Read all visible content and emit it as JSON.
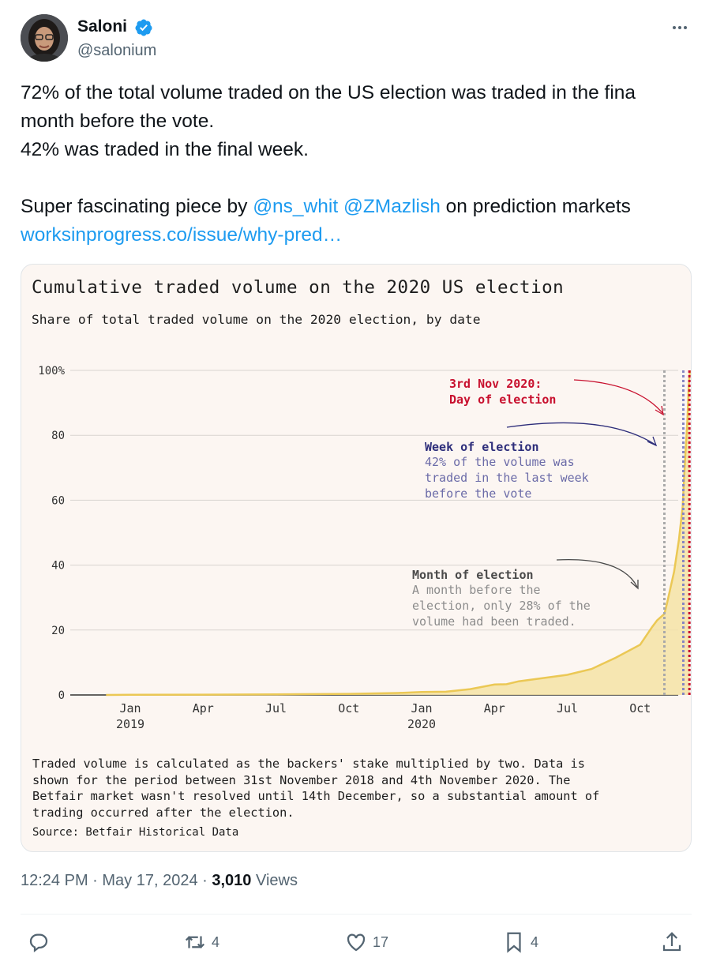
{
  "author": {
    "name": "Saloni",
    "handle": "@salonium",
    "avatar_icon": "profile-photo"
  },
  "tweet": {
    "line1": "72% of the total volume traded on the US election was traded in the fina",
    "line2": "month before the vote.",
    "line3": "42% was traded in the final week.",
    "line4_prefix": "Super fascinating piece by ",
    "mention1": "@ns_whit",
    "mention2": "@ZMazlish",
    "line4_suffix": " on prediction markets",
    "link": "worksinprogress.co/issue/why-pred…"
  },
  "chart_data": {
    "type": "area",
    "title": "Cumulative traded volume on the 2020 US election",
    "subtitle": "Share of total traded volume on the 2020 election, by date",
    "y_ticks": [
      "100%",
      "80",
      "60",
      "40",
      "20",
      "0"
    ],
    "ylim": [
      0,
      100
    ],
    "x_ticks": [
      {
        "label": "Jan",
        "year": "2019",
        "month": 0
      },
      {
        "label": "Apr",
        "year": "",
        "month": 3
      },
      {
        "label": "Jul",
        "year": "",
        "month": 6
      },
      {
        "label": "Oct",
        "year": "",
        "month": 9
      },
      {
        "label": "Jan",
        "year": "2020",
        "month": 12
      },
      {
        "label": "Apr",
        "year": "",
        "month": 15
      },
      {
        "label": "Jul",
        "year": "",
        "month": 18
      },
      {
        "label": "Oct",
        "year": "",
        "month": 21
      }
    ],
    "x_units": "months since Jan 2019",
    "series": [
      {
        "values": [
          [
            -1,
            0
          ],
          [
            0,
            0.05
          ],
          [
            3,
            0.1
          ],
          [
            6,
            0.2
          ],
          [
            9,
            0.35
          ],
          [
            11,
            0.6
          ],
          [
            12,
            0.9
          ],
          [
            13,
            1.0
          ],
          [
            14,
            1.8
          ],
          [
            15,
            3.2
          ],
          [
            15.5,
            3.3
          ],
          [
            16,
            4.2
          ],
          [
            17,
            5.2
          ],
          [
            18,
            6.2
          ],
          [
            19,
            8.0
          ],
          [
            20,
            11.5
          ],
          [
            21,
            15.5
          ],
          [
            21.5,
            21.0
          ],
          [
            21.7,
            23.0
          ],
          [
            22.0,
            25.0
          ],
          [
            22.1,
            28.0
          ],
          [
            22.4,
            38.0
          ],
          [
            22.6,
            48.0
          ],
          [
            22.75,
            58.0
          ],
          [
            22.85,
            72.0
          ],
          [
            22.95,
            85.0
          ],
          [
            23.0,
            95.0
          ],
          [
            23.05,
            100
          ]
        ]
      }
    ],
    "markers": [
      {
        "name": "month",
        "x": 22.0,
        "color": "#a9a9a9"
      },
      {
        "name": "week",
        "x": 22.78,
        "color": "#8585c2"
      },
      {
        "name": "election",
        "x": 23.03,
        "color": "#c8102e"
      },
      {
        "name": "end",
        "x": 23.38,
        "color": "#e8b92b"
      }
    ],
    "annotations": {
      "election_title": "3rd Nov 2020:",
      "election_sub": "Day of election",
      "week_title": "Week of election",
      "week_l1": "42% of the volume was",
      "week_l2": "traded in the last week",
      "week_l3": "before the vote",
      "month_title": "Month of election",
      "month_l1": "A month before the",
      "month_l2": "election, only 28% of the",
      "month_l3": "volume had been traded."
    },
    "colors": {
      "area": "#f5e3a6",
      "line": "#ebc855",
      "grid": "#d8d4d0",
      "election": "#c8102e",
      "week": "#2d2d7a",
      "week_text": "#6b6ba8",
      "month": "#4a4a4a",
      "month_text": "#8c8c8c"
    }
  },
  "note_lines": [
    "Traded volume is calculated as the backers' stake multiplied by two. Data is",
    "shown for the period between 31st November 2018 and 4th November 2020. The",
    "Betfair market wasn't resolved until 14th December, so a substantial amount of",
    "trading occurred after the election."
  ],
  "source": "Source: Betfair Historical Data",
  "meta": {
    "time": "12:24 PM",
    "sep1": " · ",
    "date": "May 17, 2024",
    "sep2": " · ",
    "views_count": "3,010",
    "views_label": " Views"
  },
  "actions": {
    "replies": "",
    "retweets": "4",
    "likes": "17",
    "bookmarks": "4"
  }
}
